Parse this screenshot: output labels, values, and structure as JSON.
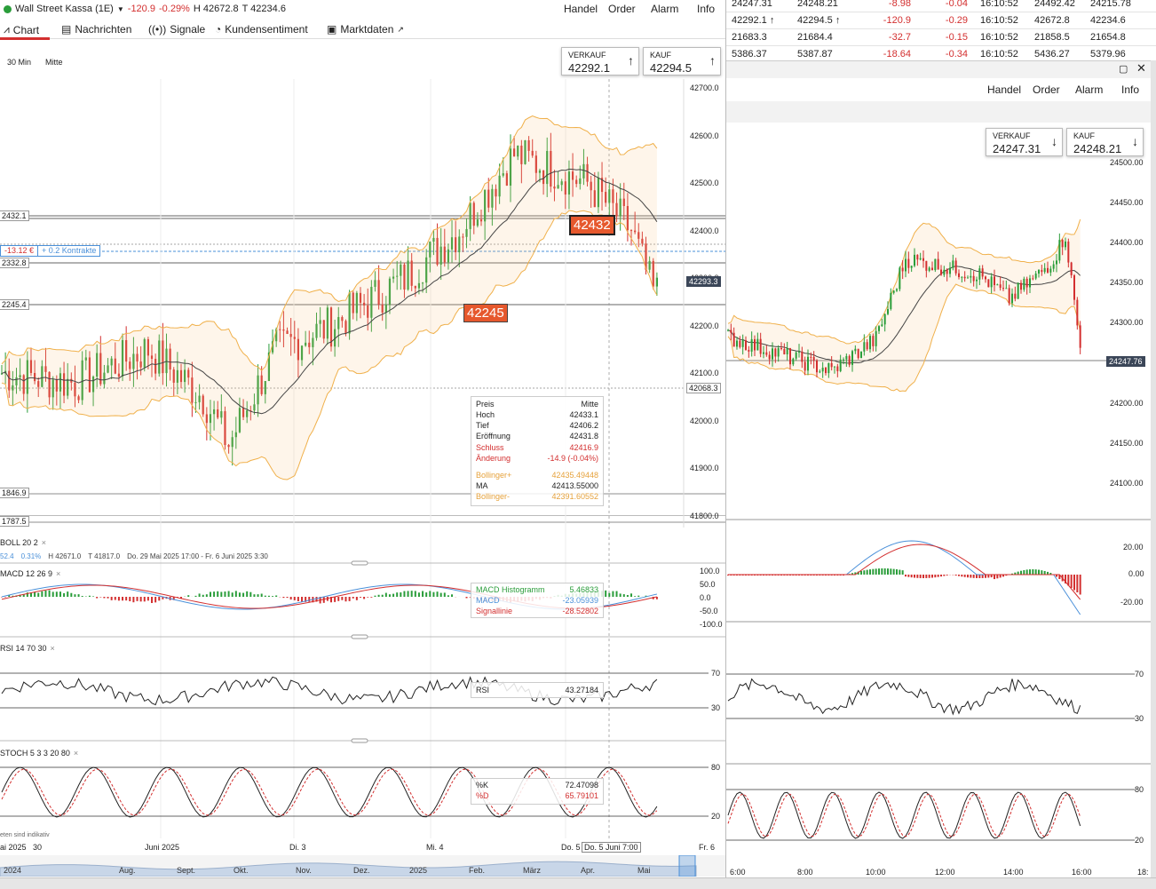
{
  "header": {
    "instrument": "Wall Street Kassa (1E)",
    "change": "-120.9",
    "change_pct": "-0.29%",
    "high": "H 42672.8",
    "low": "T 42234.6",
    "menu": [
      "Handel",
      "Order",
      "Alarm",
      "Info"
    ]
  },
  "tabs": [
    {
      "label": "Chart",
      "icon": "chart-icon"
    },
    {
      "label": "Nachrichten",
      "icon": "news-icon"
    },
    {
      "label": "Signale",
      "icon": "signal-icon"
    },
    {
      "label": "Kundensentiment",
      "icon": "sentiment-icon"
    },
    {
      "label": "Marktdaten",
      "icon": "data-icon"
    }
  ],
  "timeframe": {
    "interval": "30 Min",
    "price_mode": "Mitte"
  },
  "quote_left": {
    "sell_label": "VERKAUF",
    "sell": "42292.1",
    "buy_label": "KAUF",
    "buy": "42294.5"
  },
  "left_price_axis": [
    "42700.0",
    "42600.0",
    "42500.0",
    "42400.0",
    "42300.0",
    "42200.0",
    "42100.0",
    "42000.0",
    "41900.0",
    "41800.0"
  ],
  "left_price_tags": {
    "current": "42293.3",
    "low_line": "42068.3"
  },
  "left_line_labels": [
    "2432.1",
    "2332.8",
    "2245.4",
    "1846.9",
    "1787.5"
  ],
  "position_label": {
    "pnl": "-13.12 €",
    "contracts": "+ 0.2 Kontrakte"
  },
  "orange_labels": [
    "42432",
    "42245"
  ],
  "data_box": {
    "header_left": "Preis",
    "header_right": "Mitte",
    "rows": [
      {
        "label": "Hoch",
        "value": "42433.1",
        "color": "#222222"
      },
      {
        "label": "Tief",
        "value": "42406.2",
        "color": "#222222"
      },
      {
        "label": "Eröffnung",
        "value": "42431.8",
        "color": "#222222"
      },
      {
        "label": "Schluss",
        "value": "42416.9",
        "color": "#d32f2f"
      },
      {
        "label": "Änderung",
        "value": "-14.9 (-0.04%)",
        "color": "#d32f2f"
      }
    ],
    "bands": [
      {
        "label": "Bollinger+",
        "value": "42435.49448",
        "color": "#e6a23c"
      },
      {
        "label": "MA",
        "value": "42413.55000",
        "color": "#222222"
      },
      {
        "label": "Bollinger-",
        "value": "42391.60552",
        "color": "#e6a23c"
      }
    ]
  },
  "boll_indicator": {
    "label": "BOLL  20  2",
    "stats1": "52.4",
    "stats2": "0.31%",
    "high": "H 42671.0",
    "low": "T 41817.0",
    "range": "Do. 29 Mai 2025 17:00 - Fr. 6 Juni 2025 3:30"
  },
  "macd": {
    "label": "MACD  12  26  9",
    "axis": [
      "100.0",
      "50.0",
      "0.0",
      "-50.0",
      "-100.0"
    ],
    "rows": [
      {
        "label": "MACD Histogramm",
        "value": "5.46833",
        "color": "#2a9d3a"
      },
      {
        "label": "MACD",
        "value": "-23.05939",
        "color": "#4a90d9"
      },
      {
        "label": "Signallinie",
        "value": "-28.52802",
        "color": "#d32f2f"
      }
    ]
  },
  "rsi": {
    "label": "RSI  14  70  30",
    "axis": [
      "70",
      "30"
    ],
    "row_label": "RSI",
    "row_value": "43.27184"
  },
  "stoch": {
    "label": "STOCH  5  3  3  20  80",
    "axis": [
      "80",
      "20"
    ],
    "rows": [
      {
        "label": "%K",
        "value": "72.47098",
        "color": "#222222"
      },
      {
        "label": "%D",
        "value": "65.79101",
        "color": "#d32f2f"
      }
    ]
  },
  "footer_note": "eten sind indikativ",
  "time_axis_left": [
    "ai 2025",
    "30",
    "Juni 2025",
    "Di. 3",
    "Mi. 4",
    "Do. 5",
    "Do. 5 Juni 7:00",
    "Fr. 6"
  ],
  "navigator_labels": [
    "2024",
    "Aug.",
    "Sept.",
    "Okt.",
    "Nov.",
    "Dez.",
    "2025",
    "Feb.",
    "März",
    "Apr.",
    "Mai"
  ],
  "ticker_rows": [
    [
      "24247.31",
      "24248.21",
      "-8.98",
      "-0.04",
      "16:10:52",
      "24492.42",
      "24215.78"
    ],
    [
      "42292.1 ↑",
      "42294.5 ↑",
      "-120.9",
      "-0.29",
      "16:10:52",
      "42672.8",
      "42234.6"
    ],
    [
      "21683.3",
      "21684.4",
      "-32.7",
      "-0.15",
      "16:10:52",
      "21858.5",
      "21654.8"
    ],
    [
      "5386.37",
      "5387.87",
      "-18.64",
      "-0.34",
      "16:10:52",
      "5436.27",
      "5379.96"
    ]
  ],
  "right_menu": [
    "Handel",
    "Order",
    "Alarm",
    "Info"
  ],
  "quote_right": {
    "sell_label": "VERKAUF",
    "sell": "24247.31",
    "buy_label": "KAUF",
    "buy": "24248.21"
  },
  "right_price_axis": [
    "24500.00",
    "24450.00",
    "24400.00",
    "24350.00",
    "24300.00",
    "24250.00",
    "24200.00",
    "24150.00",
    "24100.00"
  ],
  "right_current_tag": "24247.76",
  "right_macd_axis": [
    "20.00",
    "0.00",
    "-20.00"
  ],
  "right_rsi_axis": [
    "70",
    "30"
  ],
  "right_stoch_axis": [
    "80",
    "20"
  ],
  "time_axis_right": [
    "6:00",
    "8:00",
    "10:00",
    "12:00",
    "14:00",
    "16:00",
    "18:"
  ]
}
